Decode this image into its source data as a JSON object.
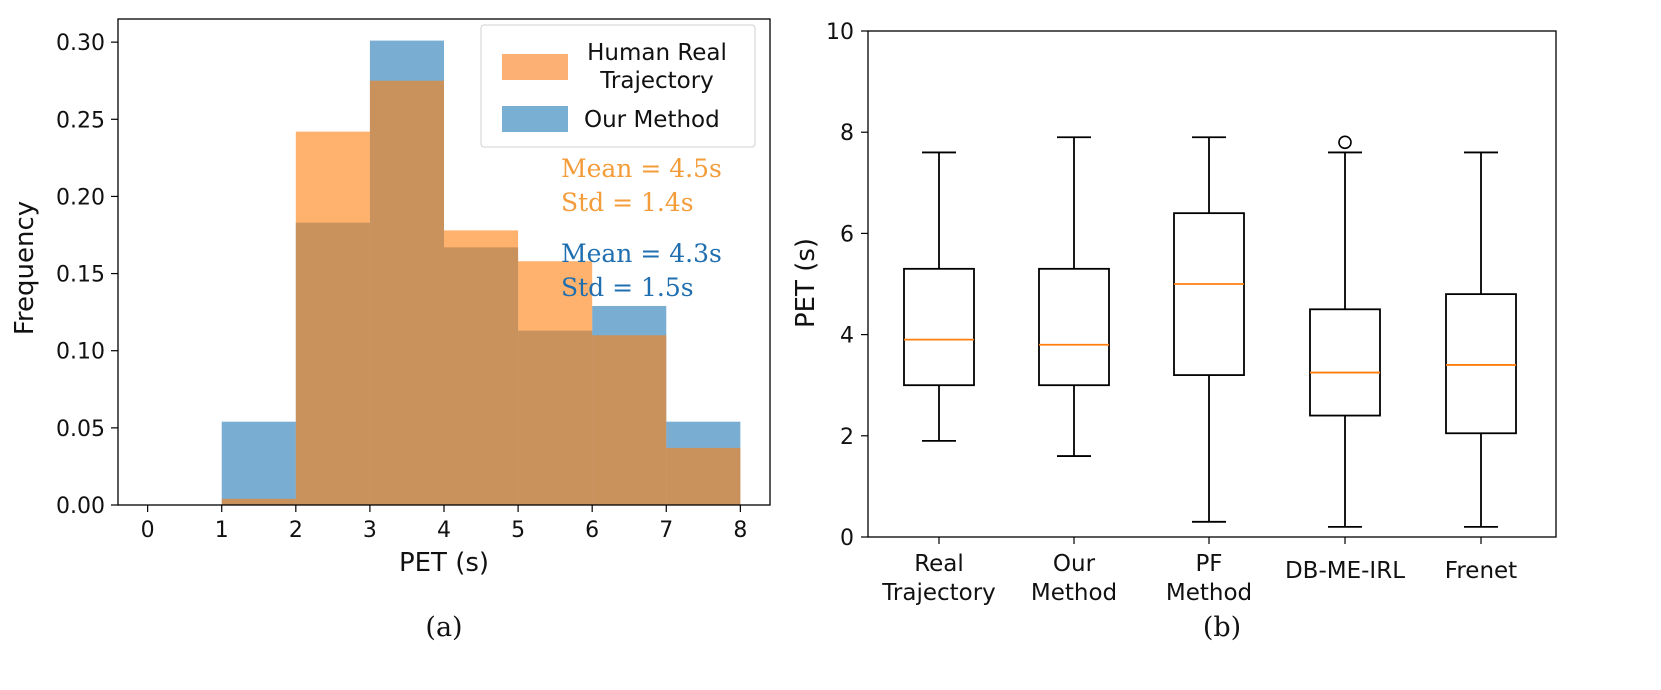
{
  "chart_data": [
    {
      "type": "bar",
      "subtype": "histogram-overlay",
      "caption": "(a)",
      "xlabel": "PET (s)",
      "ylabel": "Frequency",
      "xlim": [
        -0.4,
        8.4
      ],
      "ylim": [
        0,
        0.315
      ],
      "xticks": [
        "0",
        "1",
        "2",
        "3",
        "4",
        "5",
        "6",
        "7",
        "8"
      ],
      "yticks": [
        "0.00",
        "0.05",
        "0.10",
        "0.15",
        "0.20",
        "0.25",
        "0.30"
      ],
      "bin_edges": [
        1,
        2,
        3,
        4,
        5,
        6,
        7,
        8
      ],
      "series": [
        {
          "name": "Our Method",
          "color": "#1f77b4",
          "alpha": 0.6,
          "values": [
            0.054,
            0.183,
            0.301,
            0.167,
            0.113,
            0.129,
            0.054
          ]
        },
        {
          "name": "Human Real Trajectory",
          "color": "#ff7f0e",
          "alpha": 0.6,
          "values": [
            0.004,
            0.242,
            0.275,
            0.178,
            0.158,
            0.11,
            0.037
          ]
        }
      ],
      "legend": {
        "position": "top-right",
        "items": [
          {
            "line1": "Human Real",
            "line2": "Trajectory",
            "color": "#fdb074"
          },
          {
            "line1": "Our Method",
            "line2": "",
            "color": "#7aafd4"
          }
        ]
      },
      "annotations": [
        {
          "lines": [
            "Mean = 4.5s",
            "Std = 1.4s"
          ],
          "color": "#f39c3a"
        },
        {
          "lines": [
            "Mean = 4.3s",
            "Std = 1.5s"
          ],
          "color": "#1f6fb0"
        }
      ]
    },
    {
      "type": "box",
      "caption": "(b)",
      "ylabel": "PET (s)",
      "ylim": [
        0,
        10
      ],
      "yticks": [
        "0",
        "2",
        "4",
        "6",
        "8",
        "10"
      ],
      "median_color": "#ff7f0e",
      "boxes": [
        {
          "label1": "Real",
          "label2": "Trajectory",
          "whislo": 1.9,
          "q1": 3.0,
          "med": 3.9,
          "q3": 5.3,
          "whishi": 7.6,
          "fliers": []
        },
        {
          "label1": "Our",
          "label2": "Method",
          "whislo": 1.6,
          "q1": 3.0,
          "med": 3.8,
          "q3": 5.3,
          "whishi": 7.9,
          "fliers": []
        },
        {
          "label1": "PF",
          "label2": "Method",
          "whislo": 0.3,
          "q1": 3.2,
          "med": 5.0,
          "q3": 6.4,
          "whishi": 7.9,
          "fliers": []
        },
        {
          "label1": "DB-ME-IRL",
          "label2": "",
          "whislo": 0.2,
          "q1": 2.4,
          "med": 3.25,
          "q3": 4.5,
          "whishi": 7.6,
          "fliers": [
            7.8
          ]
        },
        {
          "label1": "Frenet",
          "label2": "",
          "whislo": 0.2,
          "q1": 2.05,
          "med": 3.4,
          "q3": 4.8,
          "whishi": 7.6,
          "fliers": []
        }
      ]
    }
  ]
}
